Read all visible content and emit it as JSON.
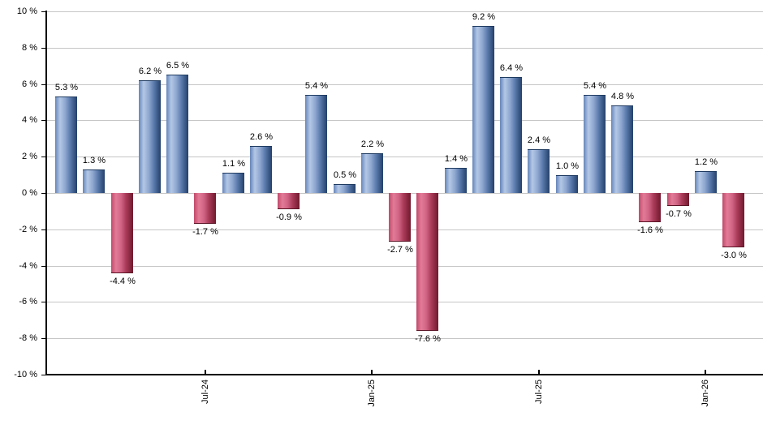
{
  "chart_data": {
    "type": "bar",
    "title": "",
    "unit": "%",
    "values": [
      5.3,
      1.3,
      -4.4,
      6.2,
      6.5,
      -1.7,
      1.1,
      2.6,
      -0.9,
      5.4,
      0.5,
      2.2,
      -2.7,
      -7.6,
      1.4,
      9.2,
      6.4,
      2.4,
      1.0,
      5.4,
      4.8,
      -1.6,
      -0.7,
      1.2,
      -3.0
    ],
    "bar_labels": [
      "5.3 %",
      "1.3 %",
      "-4.4 %",
      "6.2 %",
      "6.5 %",
      "-1.7 %",
      "1.1 %",
      "2.6 %",
      "-0.9 %",
      "5.4 %",
      "0.5 %",
      "2.2 %",
      "-2.7 %",
      "-7.6 %",
      "1.4 %",
      "9.2 %",
      "6.4 %",
      "2.4 %",
      "1.0 %",
      "5.4 %",
      "4.8 %",
      "-1.6 %",
      "-0.7 %",
      "1.2 %",
      "-3.0 %"
    ],
    "y_tick_labels": [
      "10 %",
      "8 %",
      "6 %",
      "4 %",
      "2 %",
      "0 %",
      "-2 %",
      "-4 %",
      "-6 %",
      "-8 %",
      "-10 %"
    ],
    "y_tick_values": [
      10,
      8,
      6,
      4,
      2,
      0,
      -2,
      -4,
      -6,
      -8,
      -10
    ],
    "ylim": [
      -10,
      10
    ],
    "x_ticks": [
      {
        "label": "Jul-24",
        "bar_index": 5
      },
      {
        "label": "Jan-25",
        "bar_index": 11
      },
      {
        "label": "Jul-25",
        "bar_index": 17
      },
      {
        "label": "Jan-26",
        "bar_index": 23
      }
    ],
    "grid": true,
    "legend": false,
    "colors": {
      "positive_light": "#b4c8e6",
      "positive_edge_left": "#6585b9",
      "positive_dark": "#24406a",
      "negative_light": "#e27b97",
      "negative_edge_left": "#c04a6a",
      "negative_dark": "#71192e",
      "gridline": "#c6c6c6",
      "axis": "#000000",
      "text": "#000000",
      "background": "#ffffff"
    }
  }
}
